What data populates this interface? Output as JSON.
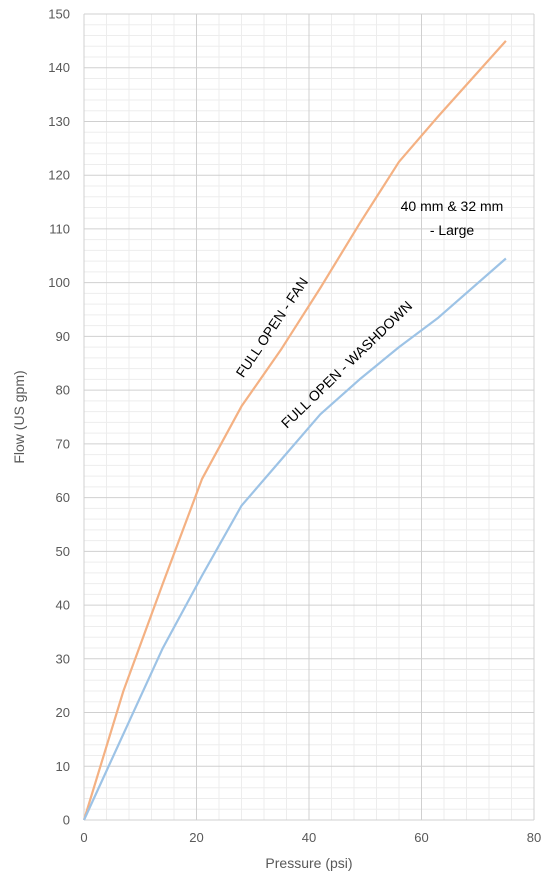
{
  "chart_data": {
    "type": "line",
    "xlabel": "Pressure (psi)",
    "ylabel": "Flow (US gpm)",
    "xlim": [
      0,
      80
    ],
    "ylim": [
      0,
      150
    ],
    "x_ticks": [
      0,
      20,
      40,
      60,
      80
    ],
    "y_ticks": [
      0,
      10,
      20,
      30,
      40,
      50,
      60,
      70,
      80,
      90,
      100,
      110,
      120,
      130,
      140,
      150
    ],
    "grid": true,
    "legend": "none",
    "annotation": [
      "40 mm & 32 mm",
      "- Large"
    ],
    "series": [
      {
        "name": "FULL OPEN - FAN",
        "color": "#F4B183",
        "x": [
          0,
          7,
          14,
          21,
          28,
          35,
          42,
          49,
          56,
          63,
          75
        ],
        "y": [
          0,
          24,
          44,
          63.5,
          77,
          87.5,
          99,
          111,
          122.5,
          131,
          145
        ]
      },
      {
        "name": "FULL OPEN - WASHDOWN",
        "color": "#9DC3E6",
        "x": [
          0,
          7,
          14,
          21,
          28,
          35,
          42,
          49,
          56,
          63,
          75
        ],
        "y": [
          0,
          16,
          32,
          45.5,
          58.5,
          67,
          75.5,
          82,
          88,
          93.5,
          104.5
        ]
      }
    ]
  }
}
